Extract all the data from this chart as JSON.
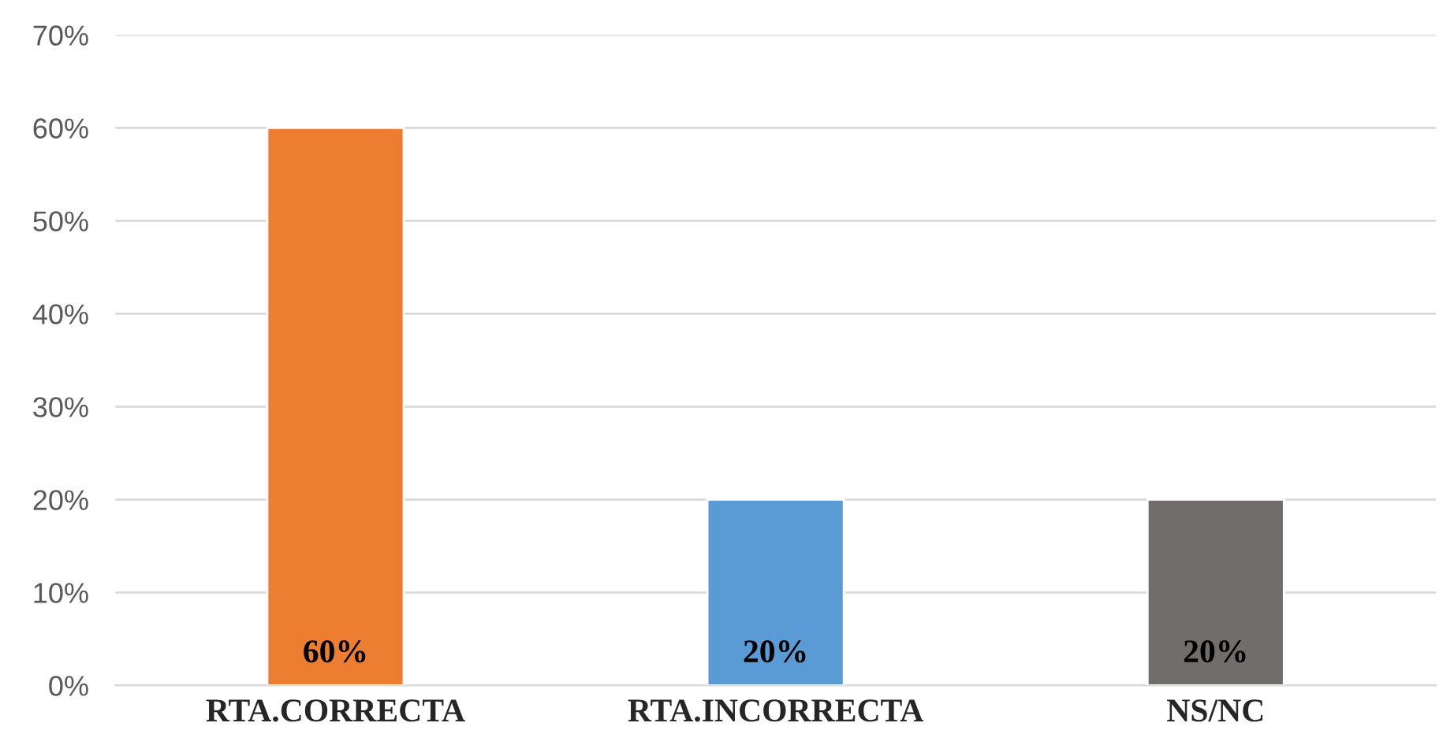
{
  "chart_data": {
    "type": "bar",
    "categories": [
      "RTA.CORRECTA",
      "RTA.INCORRECTA",
      "NS/NC"
    ],
    "values": [
      60,
      20,
      20
    ],
    "colors": [
      "#ed7d31",
      "#5b9bd5",
      "#716d6b"
    ],
    "value_labels": [
      "60%",
      "20%",
      "20%"
    ],
    "ylim": [
      0,
      70
    ],
    "yticks": [
      {
        "value": 0,
        "label": "0%"
      },
      {
        "value": 10,
        "label": "10%"
      },
      {
        "value": 20,
        "label": "20%"
      },
      {
        "value": 30,
        "label": "30%"
      },
      {
        "value": 40,
        "label": "40%"
      },
      {
        "value": 50,
        "label": "50%"
      },
      {
        "value": 60,
        "label": "60%"
      },
      {
        "value": 70,
        "label": "70%"
      }
    ],
    "grid": "y",
    "legend": false
  }
}
